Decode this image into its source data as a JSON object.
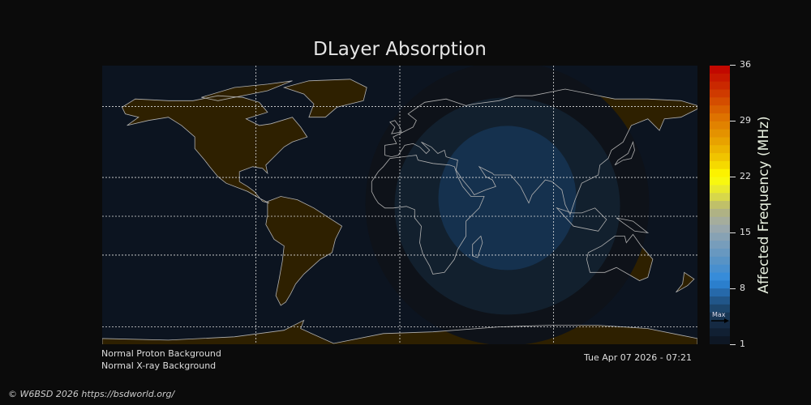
{
  "title": "DLayer Absorption",
  "colorbar": {
    "label": "Affected Frequency (MHz)",
    "ticks": [
      "36",
      "29",
      "22",
      "15",
      "8",
      "1"
    ],
    "min": 1,
    "max": 36,
    "max_marker_label": "Max",
    "max_marker_value": 4,
    "colors": [
      {
        "v": 36,
        "c": "#c00000"
      },
      {
        "v": 33,
        "c": "#cc3000"
      },
      {
        "v": 30,
        "c": "#dc6a00"
      },
      {
        "v": 27,
        "c": "#e69a00"
      },
      {
        "v": 24,
        "c": "#f2cc00"
      },
      {
        "v": 22,
        "c": "#ffff00"
      },
      {
        "v": 20,
        "c": "#e2e23c"
      },
      {
        "v": 18,
        "c": "#b4b478"
      },
      {
        "v": 16,
        "c": "#a0aaa8"
      },
      {
        "v": 14,
        "c": "#7f9fb8"
      },
      {
        "v": 11,
        "c": "#5090c8"
      },
      {
        "v": 9,
        "c": "#2e8ade"
      },
      {
        "v": 7,
        "c": "#235e98"
      },
      {
        "v": 5,
        "c": "#1a3c5c"
      },
      {
        "v": 3,
        "c": "#13243a"
      },
      {
        "v": 1,
        "c": "#0c121c"
      }
    ]
  },
  "map": {
    "ocean_color": "#0c1420",
    "land_color": "#2e2000",
    "coast_color": "#b0b0b0",
    "absorption_center": {
      "lon": 65,
      "lat": 15
    },
    "absorption_levels": [
      {
        "color": "#0e1219"
      },
      {
        "color": "#12202e"
      },
      {
        "color": "#15314e"
      }
    ]
  },
  "status": {
    "proton": "Normal Proton Background",
    "xray": "Normal X-ray Background",
    "timestamp": "Tue Apr 07 2026 - 07:21"
  },
  "footer": "© W6BSD 2026 https://bsdworld.org/"
}
